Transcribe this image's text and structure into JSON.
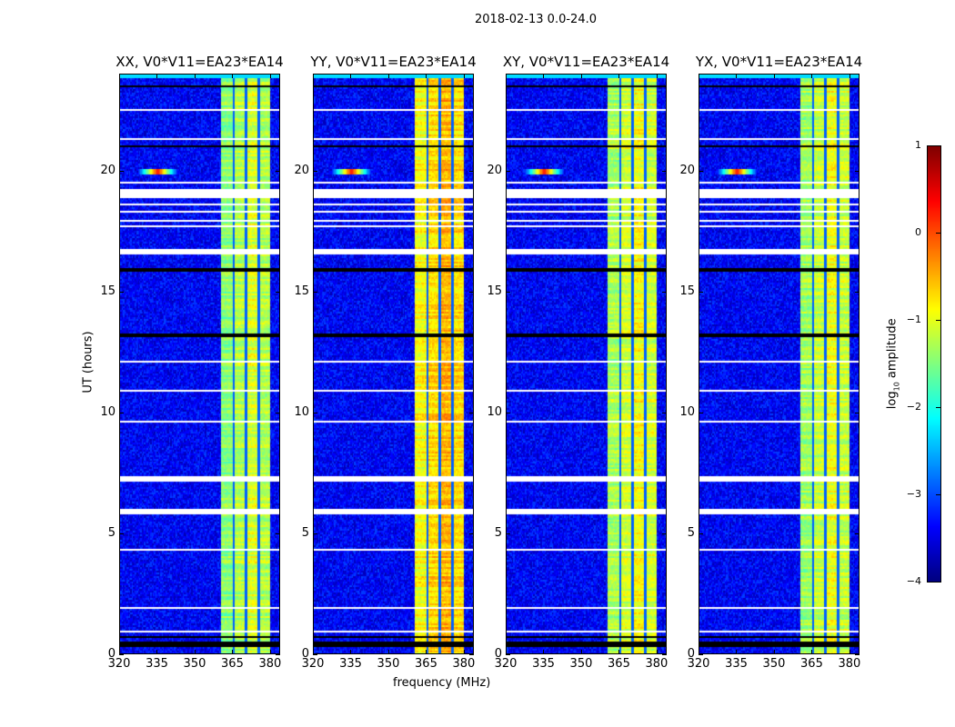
{
  "suptitle": "2018-02-13 0.0-24.0",
  "chart_data": {
    "type": "heatmap",
    "xlabel": "frequency (MHz)",
    "ylabel": "UT (hours)",
    "xlim": [
      320,
      384
    ],
    "ylim": [
      0,
      24
    ],
    "xticks": [
      "320",
      "335",
      "350",
      "365",
      "380"
    ],
    "xtick_values": [
      320,
      335,
      350,
      365,
      380
    ],
    "yticks": [
      "0",
      "5",
      "10",
      "15",
      "20"
    ],
    "ytick_values": [
      0,
      5,
      10,
      15,
      20
    ],
    "colorbar": {
      "label_main": "log",
      "label_sub": "10",
      "label_rest": " amplitude",
      "vmin": -4,
      "vmax": 1,
      "colormap": "jet",
      "ticks": [
        "1",
        "0",
        "−1",
        "−2",
        "−3",
        "−4"
      ],
      "tick_values": [
        1,
        0,
        -1,
        -2,
        -3,
        -4
      ]
    },
    "background_level": -3.4,
    "band_mhz": [
      360.7,
      380.2
    ],
    "band_notches_mhz": [
      365.6,
      370.6,
      375.6
    ],
    "rfi_spot": {
      "freq_mhz": 335,
      "hour": 20,
      "level": 0.3
    },
    "flagged_white_hours": [
      [
        0.22,
        0.26
      ],
      [
        0.9,
        0.95
      ],
      [
        1.1,
        1.15
      ],
      [
        1.9,
        1.95
      ],
      [
        2.6,
        2.65
      ],
      [
        3.5,
        3.56
      ],
      [
        4.3,
        4.35
      ],
      [
        5.8,
        6.0
      ],
      [
        7.1,
        7.35
      ],
      [
        8.3,
        8.36
      ],
      [
        9.6,
        9.65
      ],
      [
        10.9,
        10.95
      ],
      [
        12.1,
        12.15
      ],
      [
        14.6,
        14.66
      ],
      [
        16.6,
        16.8
      ],
      [
        17.0,
        17.06
      ],
      [
        17.3,
        17.36
      ],
      [
        17.7,
        17.75
      ],
      [
        17.95,
        18.0
      ],
      [
        18.3,
        18.35
      ],
      [
        18.6,
        18.66
      ],
      [
        18.9,
        19.3
      ],
      [
        19.5,
        19.55
      ],
      [
        21.3,
        21.35
      ],
      [
        22.5,
        22.55
      ],
      [
        23.0,
        23.05
      ]
    ],
    "flagged_black_hours": [
      [
        0.3,
        0.52
      ],
      [
        0.7,
        0.78
      ],
      [
        13.1,
        13.28
      ],
      [
        15.85,
        15.95
      ],
      [
        16.4,
        16.46
      ],
      [
        21.0,
        21.08
      ],
      [
        23.45,
        23.52
      ]
    ],
    "panels": [
      {
        "title": "XX, V0*V11=EA23*EA14",
        "band_level": -1.25
      },
      {
        "title": "YY, V0*V11=EA23*EA14",
        "band_level": -0.7
      },
      {
        "title": "XY, V0*V11=EA23*EA14",
        "band_level": -1.1
      },
      {
        "title": "YX, V0*V11=EA23*EA14",
        "band_level": -1.15
      }
    ]
  }
}
